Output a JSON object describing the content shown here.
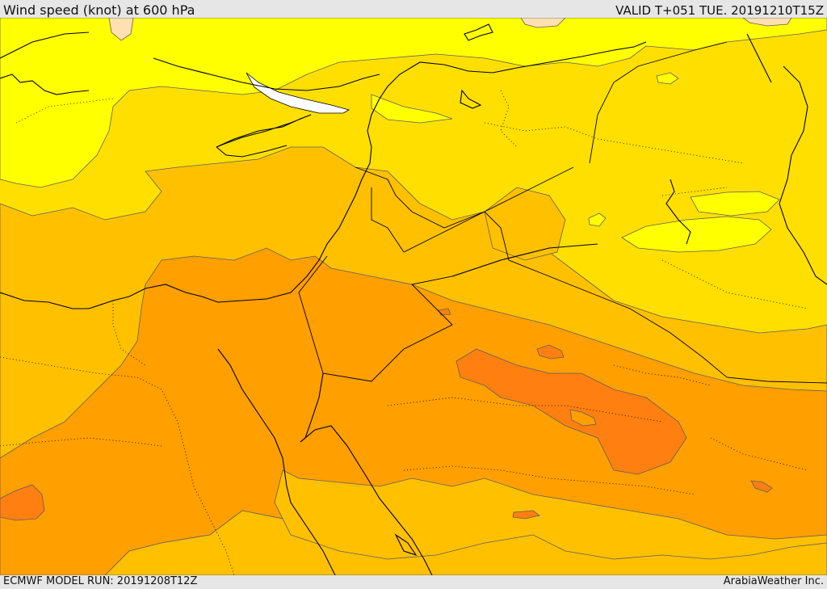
{
  "header": {
    "title": "Wind speed (knot) at 600 hPa",
    "valid": "VALID T+051 TUE. 20191210T15Z"
  },
  "footer": {
    "model_run": "ECMWF MODEL RUN: 20191208T12Z",
    "brand": "ArabiaWeather Inc."
  },
  "colors": {
    "band_yellow": "#ffff00",
    "band_gold": "#ffdf00",
    "band_amber": "#ffc000",
    "band_orange": "#ff9f00",
    "band_dark_orange": "#ff7f10",
    "band_pale_peach": "#ffe0b0",
    "lake_white": "#ffffff",
    "contour": "#606060",
    "border": "#000000"
  }
}
